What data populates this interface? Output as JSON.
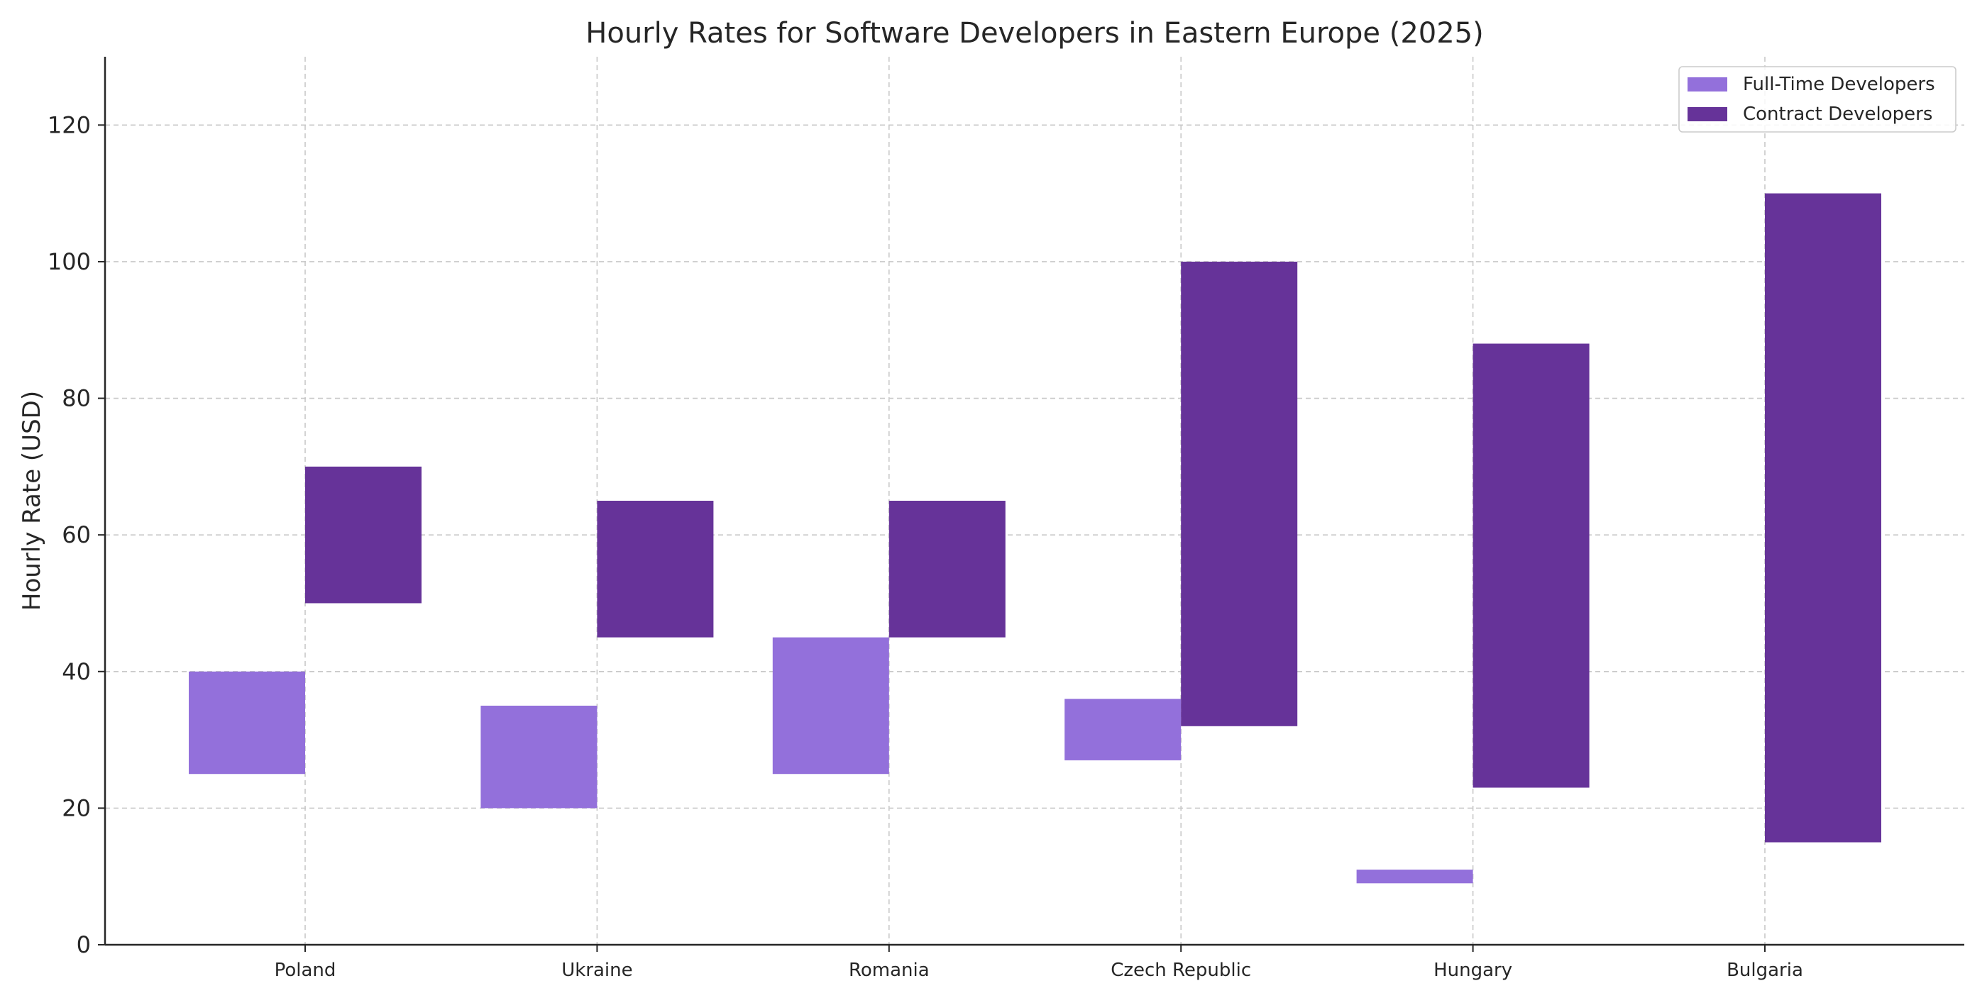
{
  "chart_data": {
    "type": "bar",
    "title": "Hourly Rates for Software Developers in Eastern Europe (2025)",
    "xlabel": "",
    "ylabel": "Hourly Rate (USD)",
    "categories": [
      "Poland",
      "Ukraine",
      "Romania",
      "Czech Republic",
      "Hungary",
      "Bulgaria"
    ],
    "series": [
      {
        "name": "Full-Time Developers",
        "color": "#9370db",
        "ranges": [
          [
            25,
            40
          ],
          [
            20,
            35
          ],
          [
            25,
            45
          ],
          [
            27,
            36
          ],
          [
            9,
            11
          ],
          [
            null,
            null
          ]
        ]
      },
      {
        "name": "Contract Developers",
        "color": "#663399",
        "ranges": [
          [
            50,
            70
          ],
          [
            45,
            65
          ],
          [
            45,
            65
          ],
          [
            32,
            100
          ],
          [
            23,
            88
          ],
          [
            15,
            110
          ]
        ]
      }
    ],
    "ylim": [
      0,
      130
    ],
    "yticks": [
      0,
      20,
      40,
      60,
      80,
      100,
      120
    ],
    "grid": true,
    "legend_position": "top-right"
  }
}
